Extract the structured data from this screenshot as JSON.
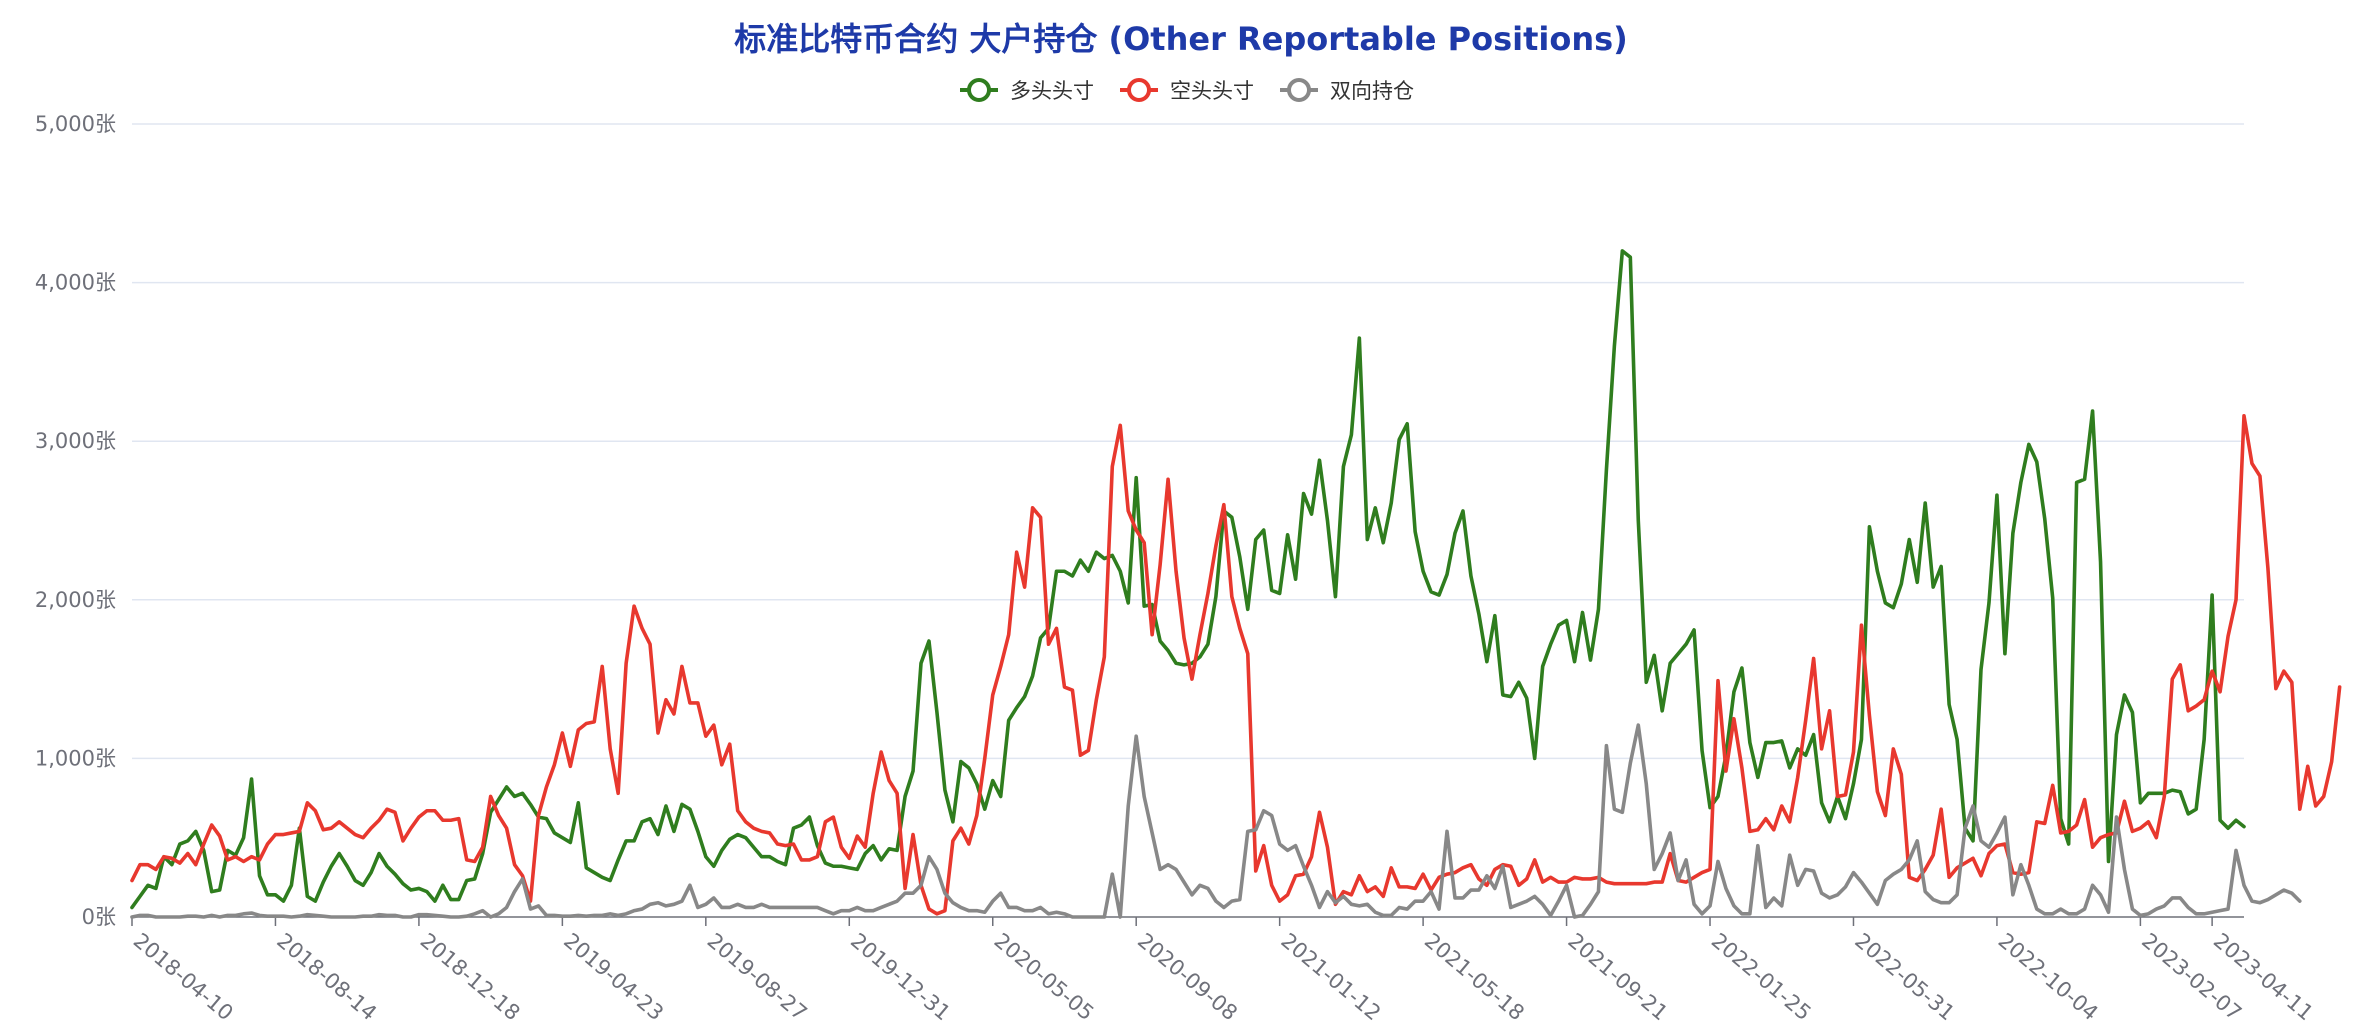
{
  "chart_data": {
    "type": "line",
    "title": "标准比特币合约 大户持仓 (Other Reportable Positions)",
    "y_unit": "张",
    "ylim": [
      0,
      5000
    ],
    "yticks": [
      0,
      1000,
      2000,
      3000,
      4000,
      5000
    ],
    "ytick_labels": [
      "0张",
      "1,000张",
      "2,000张",
      "3,000张",
      "4,000张",
      "5,000张"
    ],
    "x_tick_labels": [
      "2018-04-10",
      "2018-08-14",
      "2018-12-18",
      "2019-04-23",
      "2019-08-27",
      "2019-12-31",
      "2020-05-05",
      "2020-09-08",
      "2021-01-12",
      "2021-05-18",
      "2021-09-21",
      "2022-01-25",
      "2022-05-31",
      "2022-10-04",
      "2023-02-07",
      "2023-04-11"
    ],
    "x_tick_positions": [
      0,
      18,
      36,
      54,
      72,
      90,
      108,
      126,
      144,
      162,
      180,
      198,
      216,
      234,
      252,
      261
    ],
    "grid": true,
    "legend_position": "top-center",
    "series": [
      {
        "name": "多头头寸",
        "color": "#2f7d1e",
        "values": [
          60,
          130,
          200,
          180,
          380,
          330,
          460,
          480,
          540,
          420,
          160,
          170,
          420,
          390,
          500,
          870,
          260,
          140,
          140,
          100,
          200,
          560,
          130,
          100,
          220,
          320,
          400,
          320,
          230,
          200,
          280,
          400,
          320,
          270,
          210,
          170,
          180,
          160,
          100,
          200,
          110,
          110,
          230,
          240,
          400,
          660,
          740,
          820,
          760,
          780,
          710,
          630,
          620,
          530,
          500,
          470,
          720,
          310,
          280,
          250,
          230,
          360,
          480,
          480,
          600,
          620,
          520,
          700,
          540,
          710,
          680,
          540,
          380,
          320,
          420,
          490,
          520,
          500,
          440,
          380,
          380,
          350,
          330,
          560,
          580,
          630,
          450,
          340,
          320,
          320,
          310,
          300,
          400,
          450,
          360,
          430,
          420,
          760,
          920,
          1600,
          1740,
          1290,
          800,
          600,
          980,
          940,
          840,
          680,
          860,
          760,
          1240,
          1320,
          1390,
          1520,
          1760,
          1820,
          2180,
          2180,
          2150,
          2250,
          2180,
          2300,
          2260,
          2280,
          2180,
          1980,
          2770,
          1960,
          1970,
          1740,
          1680,
          1600,
          1590,
          1600,
          1640,
          1720,
          2020,
          2560,
          2520,
          2270,
          1940,
          2380,
          2440,
          2060,
          2040,
          2410,
          2130,
          2670,
          2540,
          2880,
          2500,
          2020,
          2840,
          3040,
          3650,
          2380,
          2580,
          2360,
          2610,
          3010,
          3110,
          2430,
          2180,
          2050,
          2030,
          2160,
          2420,
          2560,
          2150,
          1910,
          1610,
          1900,
          1400,
          1390,
          1480,
          1380,
          1000,
          1580,
          1720,
          1840,
          1870,
          1610,
          1920,
          1620,
          1940,
          2820,
          3600,
          4200,
          4160,
          2500,
          1480,
          1650,
          1300,
          1600,
          1660,
          1720,
          1810,
          1050,
          690,
          760,
          1020,
          1420,
          1570,
          1100,
          880,
          1100,
          1100,
          1110,
          940,
          1060,
          1020,
          1150,
          720,
          600,
          760,
          620,
          840,
          1120,
          2460,
          2180,
          1980,
          1950,
          2100,
          2380,
          2110,
          2610,
          2080,
          2210,
          1340,
          1120,
          560,
          480,
          1560,
          1980,
          2660,
          1660,
          2420,
          2740,
          2980,
          2870,
          2510,
          2010,
          620,
          460,
          2740,
          2760,
          3190,
          2240,
          350,
          1150,
          1400,
          1290,
          720,
          780,
          780,
          780,
          800,
          790,
          650,
          680,
          1120,
          2030,
          610,
          560,
          610,
          570
        ]
      },
      {
        "name": "空头头寸",
        "color": "#e8382e",
        "values": [
          230,
          330,
          330,
          300,
          380,
          370,
          340,
          400,
          330,
          460,
          580,
          510,
          360,
          380,
          350,
          380,
          360,
          460,
          520,
          520,
          530,
          540,
          720,
          670,
          550,
          560,
          600,
          560,
          520,
          500,
          560,
          610,
          680,
          660,
          480,
          560,
          630,
          670,
          670,
          610,
          610,
          620,
          360,
          350,
          440,
          760,
          640,
          560,
          330,
          260,
          100,
          640,
          820,
          960,
          1160,
          950,
          1180,
          1220,
          1230,
          1580,
          1060,
          780,
          1600,
          1960,
          1820,
          1720,
          1160,
          1370,
          1280,
          1580,
          1350,
          1350,
          1140,
          1210,
          960,
          1090,
          670,
          600,
          560,
          540,
          530,
          460,
          450,
          460,
          360,
          360,
          380,
          600,
          630,
          440,
          370,
          510,
          440,
          780,
          1040,
          860,
          780,
          180,
          520,
          200,
          50,
          20,
          40,
          480,
          560,
          460,
          640,
          1000,
          1400,
          1580,
          1780,
          2300,
          2080,
          2580,
          2520,
          1720,
          1820,
          1450,
          1430,
          1020,
          1050,
          1370,
          1640,
          2840,
          3100,
          2560,
          2440,
          2360,
          1780,
          2220,
          2760,
          2180,
          1760,
          1500,
          1780,
          2040,
          2340,
          2600,
          2020,
          1820,
          1660,
          290,
          450,
          200,
          100,
          140,
          260,
          270,
          380,
          660,
          440,
          80,
          160,
          140,
          260,
          160,
          190,
          130,
          310,
          190,
          190,
          180,
          270,
          170,
          250,
          270,
          280,
          310,
          330,
          240,
          200,
          300,
          330,
          320,
          200,
          240,
          360,
          220,
          250,
          220,
          220,
          250,
          240,
          240,
          250,
          220,
          210,
          210,
          210,
          210,
          210,
          220,
          220,
          400,
          230,
          220,
          250,
          280,
          300,
          1490,
          920,
          1250,
          940,
          540,
          550,
          620,
          550,
          700,
          600,
          880,
          1240,
          1630,
          1060,
          1300,
          760,
          770,
          1040,
          1840,
          1270,
          790,
          640,
          1060,
          900,
          250,
          230,
          300,
          390,
          680,
          250,
          310,
          340,
          370,
          260,
          400,
          450,
          460,
          280,
          270,
          280,
          600,
          590,
          830,
          530,
          540,
          580,
          740,
          440,
          500,
          520,
          530,
          730,
          540,
          560,
          600,
          500,
          760,
          1500,
          1590,
          1300,
          1330,
          1370,
          1550,
          1420,
          1770,
          2000,
          3160,
          2860,
          2780,
          2200,
          1440,
          1550,
          1480,
          680,
          950,
          700,
          760,
          980,
          1450
        ]
      },
      {
        "name": "双向持仓",
        "color": "#888888",
        "values": [
          0,
          10,
          10,
          0,
          0,
          0,
          0,
          5,
          5,
          0,
          10,
          0,
          10,
          10,
          20,
          25,
          10,
          5,
          5,
          5,
          0,
          5,
          15,
          10,
          5,
          0,
          0,
          0,
          0,
          5,
          5,
          15,
          10,
          10,
          0,
          0,
          15,
          15,
          10,
          5,
          0,
          0,
          5,
          20,
          40,
          0,
          20,
          60,
          160,
          240,
          50,
          70,
          10,
          10,
          5,
          5,
          10,
          5,
          10,
          10,
          20,
          10,
          20,
          40,
          50,
          80,
          90,
          70,
          80,
          100,
          200,
          60,
          80,
          120,
          60,
          60,
          80,
          60,
          60,
          80,
          60,
          60,
          60,
          60,
          60,
          60,
          60,
          40,
          20,
          40,
          40,
          60,
          40,
          40,
          60,
          80,
          100,
          150,
          150,
          200,
          380,
          300,
          150,
          90,
          60,
          40,
          40,
          30,
          100,
          150,
          60,
          60,
          40,
          40,
          60,
          20,
          30,
          20,
          0,
          0,
          0,
          0,
          0,
          270,
          0,
          700,
          1140,
          760,
          530,
          300,
          330,
          300,
          220,
          140,
          200,
          180,
          100,
          60,
          100,
          110,
          540,
          550,
          670,
          640,
          460,
          420,
          450,
          320,
          200,
          60,
          160,
          90,
          130,
          80,
          70,
          80,
          30,
          10,
          10,
          60,
          50,
          100,
          100,
          160,
          50,
          540,
          120,
          120,
          170,
          170,
          260,
          180,
          320,
          60,
          80,
          100,
          130,
          80,
          10,
          100,
          200,
          0,
          10,
          80,
          160,
          1080,
          680,
          660,
          970,
          1210,
          840,
          300,
          400,
          530,
          230,
          360,
          80,
          20,
          70,
          350,
          180,
          70,
          20,
          20,
          450,
          60,
          120,
          70,
          390,
          200,
          300,
          290,
          150,
          120,
          140,
          190,
          280,
          220,
          150,
          80,
          230,
          270,
          300,
          360,
          480,
          160,
          110,
          90,
          90,
          140,
          560,
          700,
          480,
          440,
          530,
          630,
          140,
          330,
          200,
          50,
          20,
          20,
          50,
          20,
          20,
          50,
          200,
          140,
          30,
          630,
          300,
          50,
          10,
          20,
          50,
          70,
          120,
          120,
          60,
          20,
          20,
          30,
          40,
          50,
          420,
          200,
          100,
          90,
          110,
          140,
          170,
          150,
          100
        ]
      }
    ]
  }
}
